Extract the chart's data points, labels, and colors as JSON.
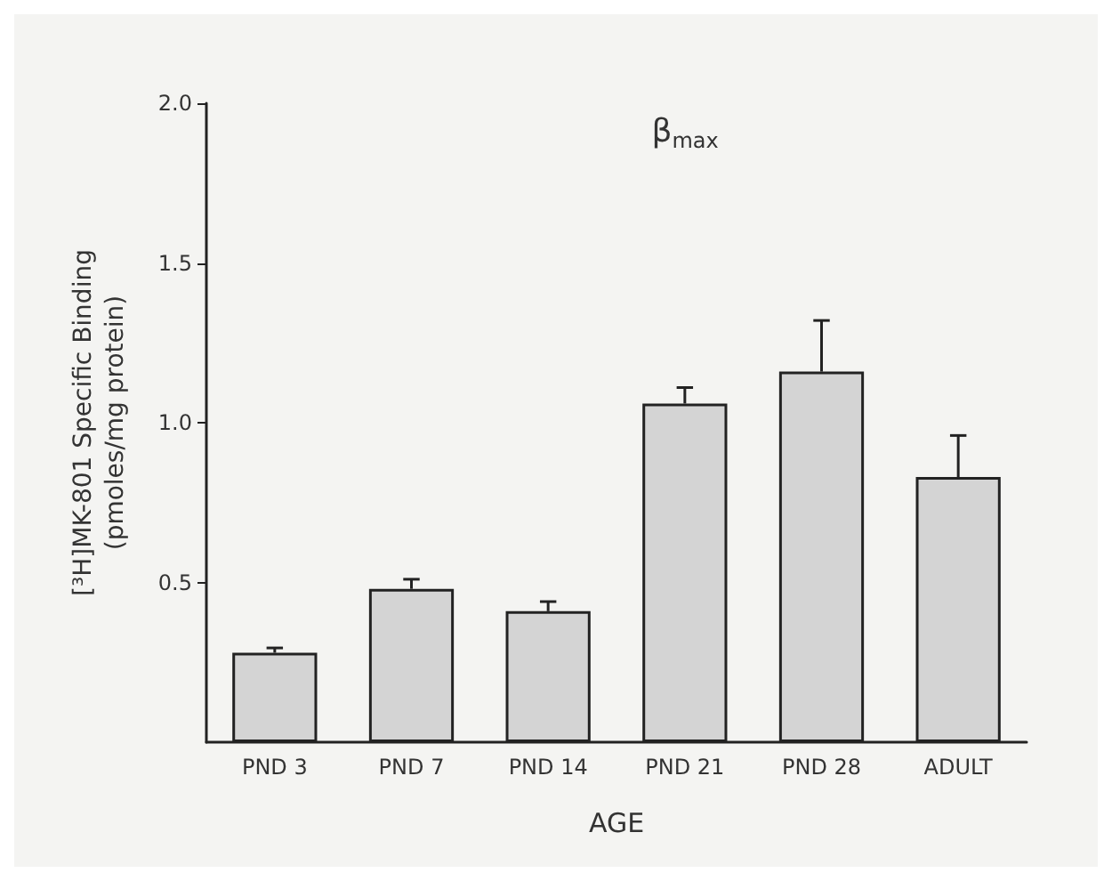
{
  "chart_data": {
    "type": "bar",
    "title": "β$_{max}$",
    "ylabel": "[³H]MK-801 Specific Binding\n(pmoles/mg protein)",
    "xlabel": "AGE",
    "categories": [
      "PND 3",
      "PND 7",
      "PND 14",
      "PND 21",
      "PND 28",
      "ADULT"
    ],
    "series": [
      {
        "color": "#d4d4d4",
        "values": [
          0.28,
          0.48,
          0.41,
          1.06,
          1.16,
          0.83
        ],
        "errors": [
          [
            0.28,
            0.295
          ],
          [
            0.48,
            0.51
          ],
          [
            0.41,
            0.44
          ],
          [
            1.06,
            1.11
          ],
          [
            1.16,
            1.32
          ],
          [
            0.83,
            0.96
          ]
        ]
      }
    ],
    "ylim": [
      0,
      2.0
    ],
    "yticks": [
      {
        "value": 0.5,
        "label": "0.5"
      },
      {
        "value": 1,
        "label": "1.0"
      },
      {
        "value": 1.5,
        "label": "1.5"
      },
      {
        "value": 2,
        "label": "2.0"
      }
    ],
    "grid": false
  }
}
